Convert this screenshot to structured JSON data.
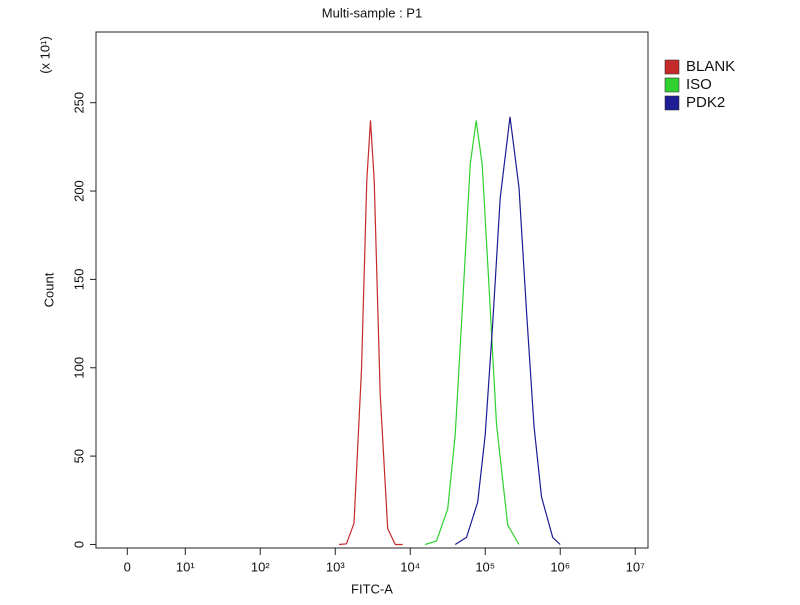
{
  "chart_data": {
    "type": "line",
    "title": "Multi-sample : P1",
    "xlabel": "FITC-A",
    "ylabel": "Count",
    "y_multiplier": "(x 10¹)",
    "xscale": "biexponential",
    "xlim": [
      -5.4,
      14800000
    ],
    "xticks": [
      0,
      {
        "value": 10,
        "label": "10¹"
      },
      {
        "value": 100,
        "label": "10²"
      },
      {
        "value": 1000,
        "label": "10³"
      },
      {
        "value": 10000,
        "label": "10⁴"
      },
      {
        "value": 100000,
        "label": "10⁵"
      },
      {
        "value": 1000000,
        "label": "10⁶"
      },
      {
        "value": 10000000,
        "label": "10⁷"
      }
    ],
    "ylim": [
      -2,
      290
    ],
    "yticks": [
      0,
      50,
      100,
      150,
      200,
      250
    ],
    "legend": "outside-top-right",
    "series": [
      {
        "name": "BLANK",
        "color": "#c62a2a",
        "x": [
          1120,
          1410,
          1780,
          2240,
          2630,
          2950,
          3310,
          3980,
          5010,
          6310,
          7940
        ],
        "values": [
          0,
          0.4,
          12,
          99,
          206,
          240,
          206,
          85,
          9,
          0,
          0
        ]
      },
      {
        "name": "ISO",
        "color": "#2ed12e",
        "x": [
          15850,
          22390,
          31620,
          39810,
          50120,
          63100,
          75860,
          91200,
          112200,
          141300,
          199500,
          281800
        ],
        "values": [
          0,
          2,
          20,
          62,
          137,
          215,
          240,
          215,
          146,
          68,
          11,
          0
        ]
      },
      {
        "name": "PDK2",
        "color": "#1c1c94",
        "x": [
          39810,
          56230,
          79430,
          100000,
          125900,
          158500,
          213800,
          281800,
          354800,
          446700,
          562300,
          794300,
          1000000
        ],
        "values": [
          0,
          4,
          24,
          62,
          125,
          196,
          242,
          202,
          132,
          67,
          27,
          4,
          0
        ]
      }
    ]
  }
}
